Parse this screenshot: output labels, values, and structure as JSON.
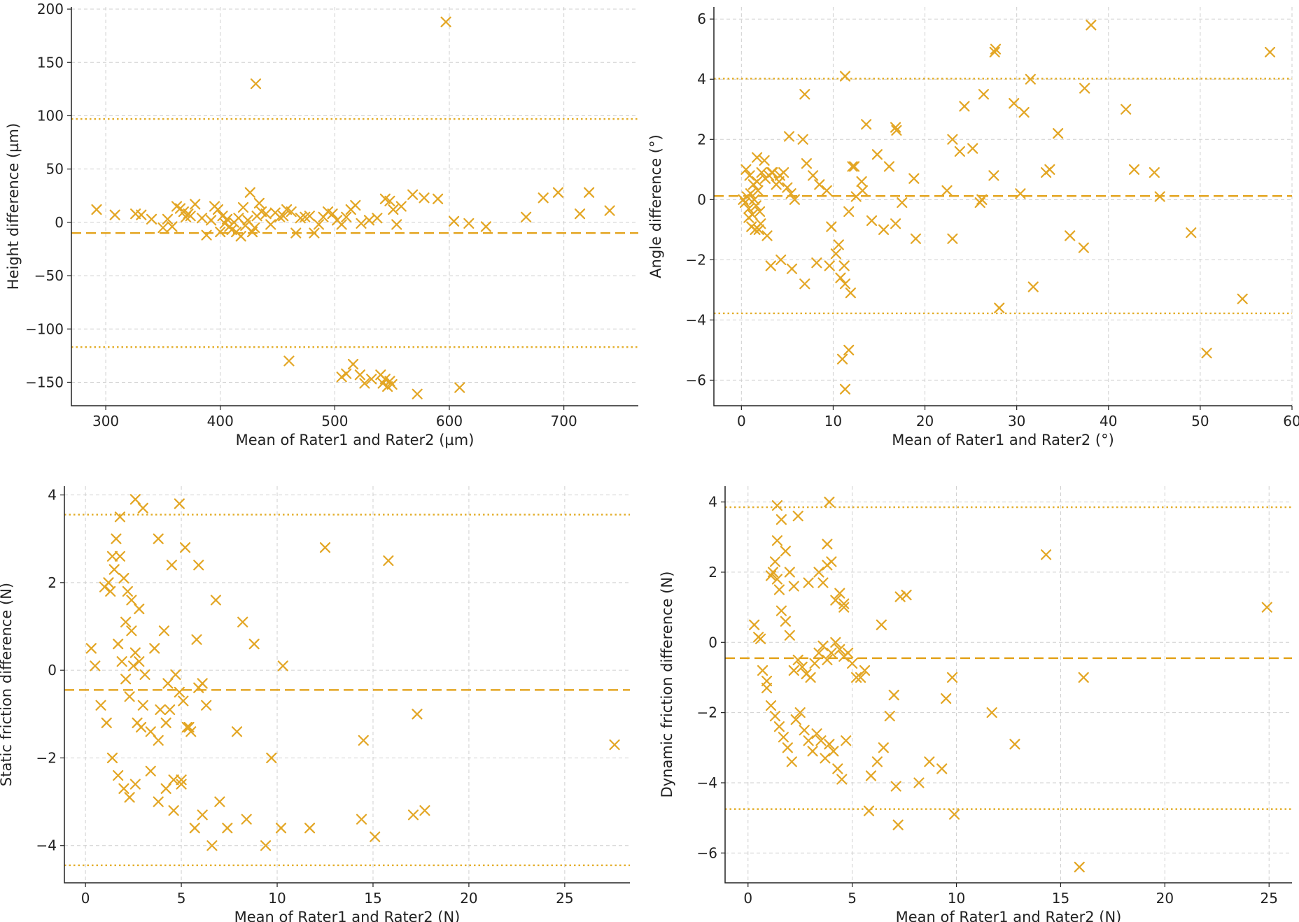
{
  "colors": {
    "marker": "#E3A624",
    "mean_line": "#E3A21A",
    "loa_line": "#E3AE2A"
  },
  "chart_data": [
    {
      "type": "scatter",
      "title": "",
      "xlabel": "Mean of Rater1 and Rater2 (µm)",
      "ylabel": "Height difference (µm)",
      "xlim": [
        270,
        765
      ],
      "ylim": [
        -172,
        202
      ],
      "xticks": [
        300,
        400,
        500,
        600,
        700
      ],
      "xtick_labels": [
        "300",
        "400",
        "500",
        "600",
        "700"
      ],
      "yticks": [
        -150,
        -100,
        -50,
        0,
        50,
        100,
        150,
        200
      ],
      "ytick_labels": [
        "−150",
        "−100",
        "−50",
        "0",
        "50",
        "100",
        "150",
        "200"
      ],
      "mean_diff": -10,
      "loa_upper": 97,
      "loa_lower": -117,
      "x": [
        292,
        308,
        326,
        331,
        340,
        350,
        354,
        358,
        362,
        365,
        368,
        370,
        372,
        374,
        378,
        384,
        388,
        392,
        395,
        398,
        400,
        402,
        404,
        406,
        408,
        410,
        412,
        414,
        416,
        418,
        420,
        422,
        424,
        426,
        428,
        430,
        432,
        434,
        436,
        440,
        444,
        448,
        452,
        455,
        458,
        462,
        466,
        470,
        474,
        478,
        482,
        486,
        490,
        494,
        498,
        502,
        506,
        510,
        514,
        518,
        523,
        530,
        537,
        544,
        548,
        551,
        554,
        558,
        568,
        578,
        590,
        604,
        617,
        632,
        667,
        682,
        695,
        714,
        722,
        740,
        431,
        597,
        460,
        506,
        510,
        516,
        522,
        526,
        532,
        540,
        542,
        544,
        546,
        548,
        550,
        572,
        609
      ],
      "y": [
        12,
        7,
        8,
        7,
        3,
        -5,
        3,
        -4,
        15,
        13,
        10,
        5,
        8,
        6,
        17,
        4,
        -12,
        2,
        15,
        12,
        -9,
        6,
        -1,
        3,
        -4,
        -7,
        0,
        -9,
        4,
        -13,
        14,
        -3,
        2,
        28,
        -9,
        -5,
        6,
        18,
        10,
        8,
        -2,
        9,
        5,
        6,
        12,
        10,
        -10,
        4,
        5,
        6,
        -10,
        -2,
        5,
        10,
        8,
        2,
        -2,
        5,
        12,
        16,
        -1,
        2,
        4,
        22,
        20,
        12,
        -2,
        15,
        26,
        23,
        22,
        1,
        -1,
        -4,
        5,
        23,
        28,
        8,
        28,
        11,
        130,
        188,
        -130,
        -145,
        -142,
        -133,
        -143,
        -151,
        -147,
        -143,
        -151,
        -147,
        -154,
        -149,
        -152,
        -161,
        -155
      ]
    },
    {
      "type": "scatter",
      "title": "",
      "xlabel": "Mean of Rater1 and Rater2 (°)",
      "ylabel": "Angle difference (°)",
      "xlim": [
        -3,
        60
      ],
      "ylim": [
        -6.85,
        6.4
      ],
      "xticks": [
        0,
        10,
        20,
        30,
        40,
        50,
        60
      ],
      "xtick_labels": [
        "0",
        "10",
        "20",
        "30",
        "40",
        "50",
        "60"
      ],
      "yticks": [
        -6,
        -4,
        -2,
        0,
        2,
        4,
        6
      ],
      "ytick_labels": [
        "−6",
        "−4",
        "−2",
        "0",
        "2",
        "4",
        "6"
      ],
      "mean_diff": 0.12,
      "loa_upper": 4.02,
      "loa_lower": -3.78,
      "x": [
        0.2,
        0.4,
        0.6,
        0.8,
        1.0,
        1.2,
        1.4,
        1.6,
        1.8,
        2.0,
        0.5,
        0.9,
        1.3,
        1.7,
        2.2,
        2.6,
        3.0,
        3.4,
        3.8,
        4.2,
        4.6,
        5.0,
        5.4,
        5.8,
        0.8,
        1.1,
        1.5,
        2.1,
        1.7,
        2.5,
        3.3,
        4.1,
        5.2,
        6.7,
        7.1,
        7.8,
        8.5,
        9.3,
        9.8,
        10.3,
        10.8,
        11.3,
        11.9,
        12.5,
        13.2,
        14.2,
        15.5,
        16.8,
        17.5,
        19.0,
        1.9,
        2.8,
        3.2,
        4.3,
        5.5,
        6.9,
        8.2,
        9.6,
        10.6,
        11.2,
        12.1,
        13.6,
        14.8,
        16.9,
        18.8,
        23.0,
        24.3,
        26.4,
        27.6,
        30.8,
        33.6,
        37.4,
        6.9,
        11.3,
        12.3,
        16.8,
        22.4,
        23.8,
        25.2,
        27.5,
        29.7,
        31.5,
        34.5,
        41.9,
        45.0,
        57.6,
        26.0,
        30.4,
        33.2,
        35.8,
        42.8,
        45.6,
        11.7,
        13.1,
        16.1,
        23.0,
        26.2,
        28.1,
        31.8,
        37.3,
        49.0,
        54.6,
        50.7,
        11.0,
        11.7,
        27.7,
        38.1,
        11.3
      ],
      "y": [
        0.0,
        -0.1,
        0.1,
        -0.3,
        0.2,
        -0.5,
        0.0,
        -0.2,
        0.3,
        -0.4,
        1.0,
        0.8,
        0.5,
        0.6,
        0.9,
        0.7,
        0.8,
        0.9,
        0.5,
        0.8,
        0.9,
        0.4,
        0.2,
        0.0,
        -0.6,
        -0.9,
        -1.0,
        -0.8,
        1.4,
        1.3,
        0.9,
        0.6,
        2.1,
        2.0,
        1.2,
        0.8,
        0.5,
        0.3,
        -0.9,
        -1.8,
        -2.6,
        -2.8,
        -3.1,
        0.1,
        0.3,
        -0.7,
        -1.0,
        -0.8,
        -0.1,
        -1.3,
        -1.0,
        -1.2,
        -2.2,
        -2.0,
        -2.3,
        -2.8,
        -2.1,
        -2.2,
        -1.5,
        -2.2,
        1.1,
        2.5,
        1.5,
        2.3,
        0.7,
        2.0,
        3.1,
        3.5,
        4.9,
        2.9,
        1.0,
        3.7,
        3.5,
        4.1,
        1.1,
        2.4,
        0.3,
        1.6,
        1.7,
        0.8,
        3.2,
        4.0,
        2.2,
        3.0,
        0.9,
        4.9,
        -0.1,
        0.2,
        0.9,
        -1.2,
        1.0,
        0.1,
        -0.4,
        0.6,
        1.1,
        -1.3,
        0.0,
        -3.6,
        -2.9,
        -1.6,
        -1.1,
        -3.3,
        -5.1,
        -5.3,
        -5.0,
        5.0,
        5.8,
        -6.3
      ]
    },
    {
      "type": "scatter",
      "title": "",
      "xlabel": "Mean of Rater1 and Rater2 (N)",
      "ylabel": "Static friction difference (N)",
      "xlim": [
        -1.1,
        28.4
      ],
      "ylim": [
        -4.85,
        4.2
      ],
      "xticks": [
        0,
        5,
        10,
        15,
        20,
        25
      ],
      "xtick_labels": [
        "0",
        "5",
        "10",
        "15",
        "20",
        "25"
      ],
      "yticks": [
        -4,
        -2,
        0,
        2,
        4
      ],
      "ytick_labels": [
        "−4",
        "−2",
        "0",
        "2",
        "4"
      ],
      "mean_diff": -0.45,
      "loa_upper": 3.55,
      "loa_lower": -4.45,
      "x": [
        0.3,
        0.5,
        0.8,
        1.0,
        1.2,
        1.4,
        1.6,
        1.8,
        2.0,
        2.2,
        2.4,
        2.6,
        2.8,
        3.0,
        3.4,
        3.8,
        4.2,
        4.6,
        5.0,
        5.4,
        1.3,
        1.5,
        1.7,
        1.9,
        2.1,
        2.3,
        2.5,
        2.7,
        3.9,
        4.3,
        4.7,
        5.1,
        5.5,
        5.9,
        6.3,
        1.1,
        1.4,
        1.7,
        2.0,
        2.3,
        2.6,
        2.9,
        3.4,
        3.8,
        4.2,
        4.6,
        5.0,
        5.7,
        6.1,
        6.6,
        7.0,
        7.4,
        7.9,
        8.4,
        8.8,
        9.4,
        10.2,
        11.7,
        14.4,
        15.1,
        17.1,
        17.7,
        27.6,
        12.5,
        15.8,
        17.3,
        14.5,
        2.6,
        3.0,
        4.9,
        1.8,
        3.8,
        4.5,
        5.2,
        5.9,
        6.8,
        8.2,
        9.7,
        10.3,
        2.1,
        2.4,
        2.8,
        3.1,
        3.6,
        4.1,
        4.4,
        4.9,
        5.3,
        5.8,
        6.1
      ],
      "y": [
        0.5,
        0.1,
        -0.8,
        1.9,
        2.0,
        2.6,
        3.0,
        2.6,
        2.1,
        1.8,
        1.6,
        0.4,
        0.2,
        -0.8,
        -1.4,
        -1.6,
        -1.2,
        -2.5,
        -2.6,
        -1.3,
        1.8,
        2.3,
        0.6,
        0.2,
        -0.2,
        -0.6,
        0.1,
        -1.2,
        -0.9,
        -0.3,
        -0.1,
        -0.7,
        -1.4,
        -0.4,
        -0.8,
        -1.2,
        -2.0,
        -2.4,
        -2.7,
        -2.9,
        -2.6,
        -1.3,
        -2.3,
        -3.0,
        -2.7,
        -3.2,
        -2.5,
        -3.6,
        -3.3,
        -4.0,
        -3.0,
        -3.6,
        -1.4,
        -3.4,
        0.6,
        -4.0,
        -3.6,
        -3.6,
        -3.4,
        -3.8,
        -3.3,
        -3.2,
        -1.7,
        2.8,
        2.5,
        -1.0,
        -1.6,
        3.9,
        3.7,
        3.8,
        3.5,
        3.0,
        2.4,
        2.8,
        2.4,
        1.6,
        1.1,
        -2.0,
        0.1,
        1.1,
        0.9,
        1.4,
        -0.1,
        0.5,
        0.9,
        -0.9,
        -0.5,
        -1.3,
        0.7,
        -0.3
      ],
      "y_check": []
    },
    {
      "type": "scatter",
      "title": "",
      "xlabel": "Mean of Rater1 and Rater2 (N)",
      "ylabel": "Dynamic friction difference (N)",
      "xlim": [
        -1.1,
        26.1
      ],
      "ylim": [
        -6.85,
        4.45
      ],
      "xticks": [
        0,
        5,
        10,
        15,
        20,
        25
      ],
      "xtick_labels": [
        "0",
        "5",
        "10",
        "15",
        "20",
        "25"
      ],
      "yticks": [
        -6,
        -4,
        -2,
        0,
        2,
        4
      ],
      "ytick_labels": [
        "−6",
        "−4",
        "−2",
        "0",
        "2",
        "4"
      ],
      "mean_diff": -0.45,
      "loa_upper": 3.85,
      "loa_lower": -4.75,
      "x": [
        0.3,
        0.5,
        0.7,
        0.9,
        1.1,
        1.2,
        1.3,
        1.4,
        1.5,
        1.6,
        1.8,
        2.0,
        2.2,
        2.4,
        2.6,
        2.8,
        3.0,
        3.2,
        3.4,
        3.6,
        3.8,
        4.0,
        4.2,
        4.4,
        4.6,
        4.8,
        5.0,
        5.2,
        0.9,
        1.1,
        1.3,
        1.5,
        1.7,
        1.9,
        2.1,
        2.3,
        2.5,
        2.7,
        2.9,
        3.1,
        3.3,
        3.5,
        3.7,
        3.9,
        4.1,
        4.3,
        4.5,
        4.7,
        1.4,
        1.6,
        1.8,
        2.0,
        2.2,
        3.4,
        3.6,
        3.8,
        4.0,
        4.2,
        4.4,
        4.6,
        5.4,
        5.6,
        5.9,
        6.2,
        6.5,
        6.8,
        7.1,
        7.3,
        7.6,
        8.2,
        8.7,
        9.3,
        9.5,
        9.8,
        9.9,
        11.7,
        12.8,
        14.3,
        15.9,
        16.1,
        24.9,
        5.8,
        7.2,
        3.9,
        1.4,
        2.4,
        3.8,
        4.6,
        2.9,
        0.6,
        6.4,
        7.0
      ],
      "y": [
        0.5,
        0.15,
        -0.8,
        -1.1,
        1.9,
        2.0,
        2.3,
        1.8,
        1.5,
        0.9,
        0.6,
        0.2,
        -0.8,
        -0.5,
        -0.7,
        -0.9,
        -1.0,
        -0.6,
        -0.3,
        -0.1,
        -0.5,
        -0.3,
        0.0,
        -0.2,
        -0.4,
        -0.3,
        -0.6,
        -1.0,
        -1.3,
        -1.8,
        -2.1,
        -2.4,
        -2.7,
        -3.0,
        -3.4,
        -2.2,
        -2.0,
        -2.5,
        -2.8,
        -3.1,
        -2.6,
        -2.8,
        -3.3,
        -2.9,
        -3.1,
        -3.6,
        -3.9,
        -2.8,
        3.9,
        3.5,
        2.6,
        2.0,
        1.6,
        2.0,
        1.7,
        2.8,
        2.3,
        1.2,
        1.4,
        1.0,
        -1.0,
        -0.8,
        -3.8,
        -3.4,
        -3.0,
        -2.1,
        -4.1,
        1.3,
        1.35,
        -4.0,
        -3.4,
        -3.6,
        -1.6,
        -1.0,
        -4.9,
        -2.0,
        -2.9,
        2.5,
        -6.4,
        -1.0,
        1.0,
        -4.8,
        -5.2,
        4.0,
        2.9,
        3.6,
        2.2,
        1.1,
        1.7,
        0.1,
        0.5,
        -1.5
      ]
    }
  ]
}
